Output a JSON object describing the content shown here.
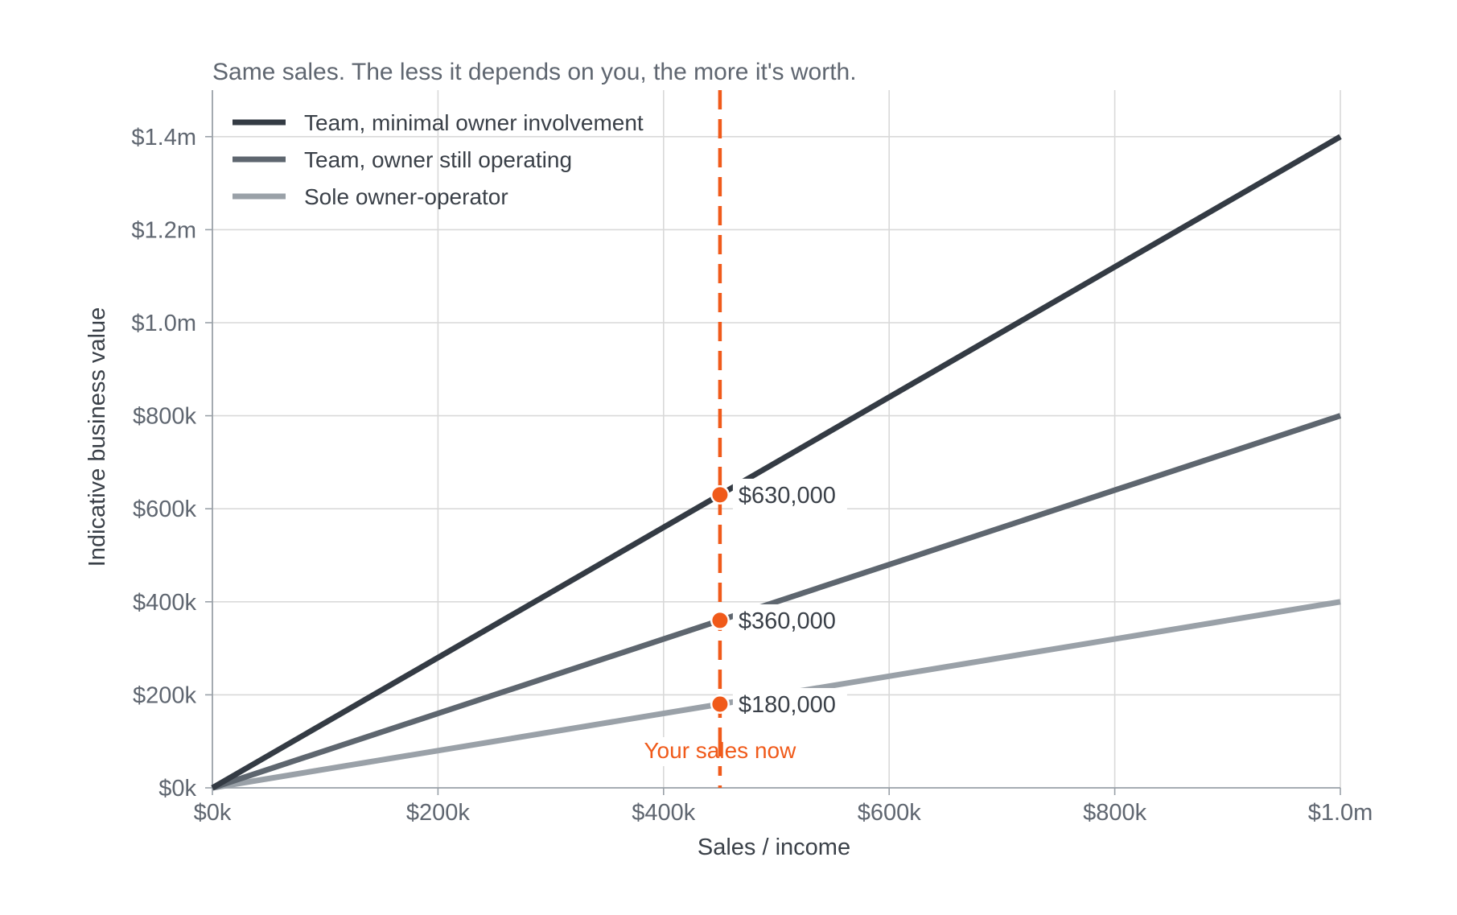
{
  "chart_data": {
    "type": "line",
    "title": "Same sales. The less it depends on you, the more it's worth.",
    "xlabel": "Sales / income",
    "ylabel": "Indicative business value",
    "xlim": [
      0,
      1000000
    ],
    "ylim": [
      0,
      1500000
    ],
    "grid": true,
    "legend_position": "top-left",
    "x_ticks": [
      {
        "value": 0,
        "label": "$0k"
      },
      {
        "value": 200000,
        "label": "$200k"
      },
      {
        "value": 400000,
        "label": "$400k"
      },
      {
        "value": 600000,
        "label": "$600k"
      },
      {
        "value": 800000,
        "label": "$800k"
      },
      {
        "value": 1000000,
        "label": "$1.0m"
      }
    ],
    "y_ticks": [
      {
        "value": 0,
        "label": "$0k"
      },
      {
        "value": 200000,
        "label": "$200k"
      },
      {
        "value": 400000,
        "label": "$400k"
      },
      {
        "value": 600000,
        "label": "$600k"
      },
      {
        "value": 800000,
        "label": "$800k"
      },
      {
        "value": 1000000,
        "label": "$1.0m"
      },
      {
        "value": 1200000,
        "label": "$1.2m"
      },
      {
        "value": 1400000,
        "label": "$1.4m"
      }
    ],
    "series": [
      {
        "name": "Team, minimal owner involvement",
        "color": "#343b44",
        "x": [
          0,
          1000000
        ],
        "y": [
          0,
          1400000
        ]
      },
      {
        "name": "Team, owner still operating",
        "color": "#5e666f",
        "x": [
          0,
          1000000
        ],
        "y": [
          0,
          800000
        ]
      },
      {
        "name": "Sole owner-operator",
        "color": "#9aa1a8",
        "x": [
          0,
          1000000
        ],
        "y": [
          0,
          400000
        ]
      }
    ],
    "reference_line": {
      "x": 450000,
      "label": "Your sales now",
      "color": "#f05a1a"
    },
    "markers": [
      {
        "x": 450000,
        "y": 630000,
        "label": "$630,000"
      },
      {
        "x": 450000,
        "y": 360000,
        "label": "$360,000"
      },
      {
        "x": 450000,
        "y": 180000,
        "label": "$180,000"
      }
    ],
    "colors": {
      "grid": "#d9d9d9",
      "axis": "#9aa1a8",
      "accent": "#f05a1a"
    }
  }
}
